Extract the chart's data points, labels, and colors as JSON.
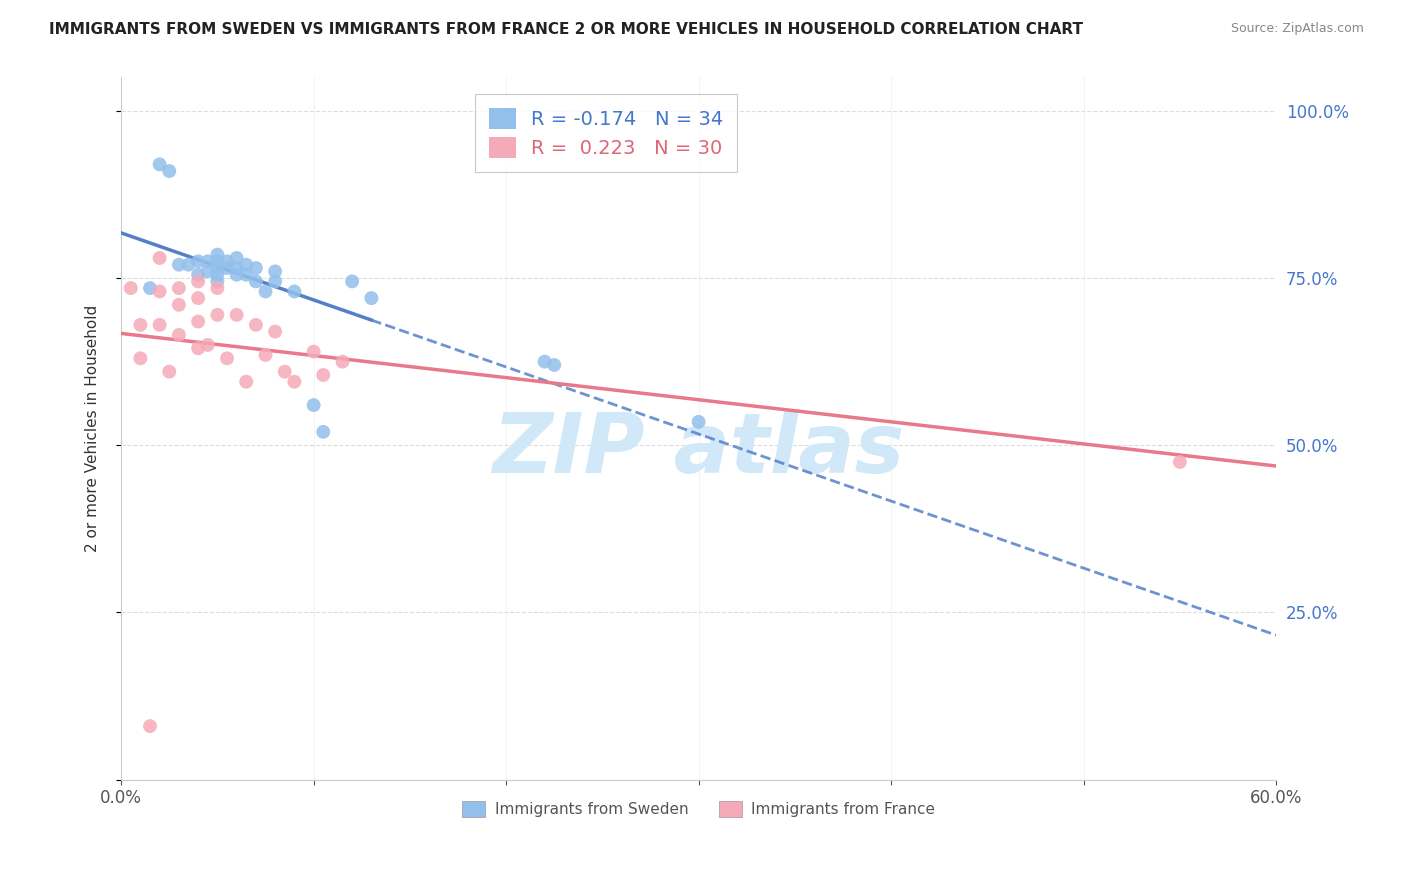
{
  "title": "IMMIGRANTS FROM SWEDEN VS IMMIGRANTS FROM FRANCE 2 OR MORE VEHICLES IN HOUSEHOLD CORRELATION CHART",
  "source": "Source: ZipAtlas.com",
  "ylabel": "2 or more Vehicles in Household",
  "xlim": [
    0.0,
    0.6
  ],
  "ylim": [
    0.0,
    1.05
  ],
  "x_ticks": [
    0.0,
    0.1,
    0.2,
    0.3,
    0.4,
    0.5,
    0.6
  ],
  "x_tick_labels": [
    "0.0%",
    "",
    "",
    "",
    "",
    "",
    "60.0%"
  ],
  "y_ticks": [
    0.0,
    0.25,
    0.5,
    0.75,
    1.0
  ],
  "y_tick_labels_right": [
    "",
    "25.0%",
    "50.0%",
    "75.0%",
    "100.0%"
  ],
  "legend_sweden": "R = -0.174   N = 34",
  "legend_france": "R =  0.223   N = 30",
  "sweden_color": "#92bfec",
  "france_color": "#f5aab8",
  "sweden_line_color": "#5580c8",
  "france_line_color": "#e8788a",
  "sweden_line_solid_end": 0.13,
  "france_line_solid_end": 0.6,
  "sweden_x": [
    0.015,
    0.02,
    0.025,
    0.03,
    0.035,
    0.04,
    0.04,
    0.045,
    0.045,
    0.05,
    0.05,
    0.05,
    0.05,
    0.05,
    0.055,
    0.055,
    0.06,
    0.06,
    0.06,
    0.065,
    0.065,
    0.07,
    0.07,
    0.075,
    0.08,
    0.08,
    0.09,
    0.1,
    0.105,
    0.12,
    0.13,
    0.22,
    0.225,
    0.3
  ],
  "sweden_y": [
    0.735,
    0.92,
    0.91,
    0.77,
    0.77,
    0.775,
    0.755,
    0.775,
    0.76,
    0.785,
    0.775,
    0.765,
    0.755,
    0.745,
    0.775,
    0.765,
    0.78,
    0.765,
    0.755,
    0.77,
    0.755,
    0.765,
    0.745,
    0.73,
    0.76,
    0.745,
    0.73,
    0.56,
    0.52,
    0.745,
    0.72,
    0.625,
    0.62,
    0.535
  ],
  "france_x": [
    0.005,
    0.01,
    0.01,
    0.015,
    0.02,
    0.02,
    0.02,
    0.025,
    0.03,
    0.03,
    0.03,
    0.04,
    0.04,
    0.04,
    0.04,
    0.045,
    0.05,
    0.05,
    0.055,
    0.06,
    0.065,
    0.07,
    0.075,
    0.08,
    0.085,
    0.09,
    0.1,
    0.105,
    0.115,
    0.55
  ],
  "france_y": [
    0.735,
    0.68,
    0.63,
    0.08,
    0.78,
    0.73,
    0.68,
    0.61,
    0.735,
    0.71,
    0.665,
    0.745,
    0.72,
    0.685,
    0.645,
    0.65,
    0.735,
    0.695,
    0.63,
    0.695,
    0.595,
    0.68,
    0.635,
    0.67,
    0.61,
    0.595,
    0.64,
    0.605,
    0.625,
    0.475
  ],
  "watermark_text": "ZIP atlas",
  "watermark_color": "#d0e8f8",
  "legend_color_sweden": "#4477cc",
  "legend_color_france": "#dd6677"
}
